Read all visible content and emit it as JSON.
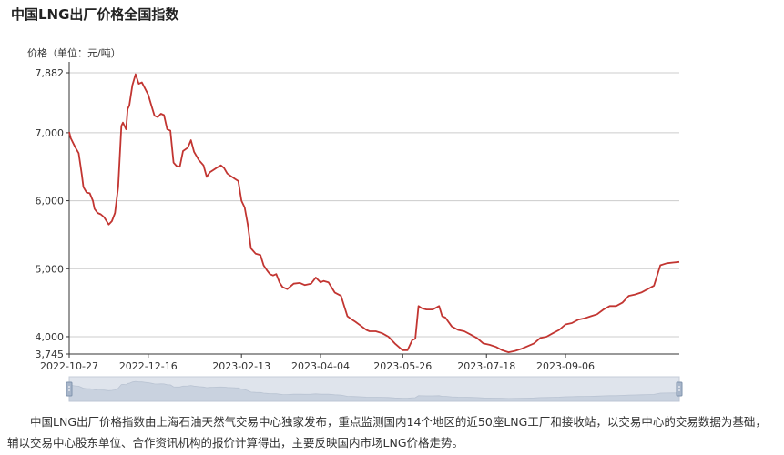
{
  "page": {
    "title": "中国LNG出厂价格全国指数",
    "description": "中国LNG出厂价格指数由上海石油天然气交易中心独家发布，重点监测国内14个地区的近50座LNG工厂和接收站，以交易中心的交易数据为基础，辅以交易中心股东单位、合作资讯机构的报价计算得出，主要反映国内市场LNG价格走势。"
  },
  "colors": {
    "line": "#c23531",
    "axis": "#333333",
    "grid": "#cccccc",
    "slider_bg": "#dfe4ec",
    "slider_fill": "#c9d2df"
  },
  "chart_data": {
    "type": "line",
    "ylabel": "价格（单位：元/吨）",
    "ylim": [
      3745,
      7882
    ],
    "y_ticks": [
      "7,882",
      "7,000",
      "6,000",
      "5,000",
      "4,000",
      "3,745"
    ],
    "y_tick_values": [
      7882,
      7000,
      6000,
      5000,
      4000,
      3745
    ],
    "x_range": [
      "2022-10-27",
      "2023-11-17"
    ],
    "x_ticks": [
      "2022-10-27",
      "2022-12-16",
      "2023-02-13",
      "2023-04-04",
      "2023-05-26",
      "2023-07-18",
      "2023-09-06"
    ],
    "series": [
      {
        "x": [
          "2022-10-27",
          "2022-10-28",
          "2022-10-31",
          "2022-11-02",
          "2022-11-04",
          "2022-11-05",
          "2022-11-07",
          "2022-11-09",
          "2022-11-11",
          "2022-11-12",
          "2022-11-14",
          "2022-11-16",
          "2022-11-18",
          "2022-11-21",
          "2022-11-23",
          "2022-11-25",
          "2022-11-27",
          "2022-11-29",
          "2022-11-30",
          "2022-12-02",
          "2022-12-03",
          "2022-12-04",
          "2022-12-06",
          "2022-12-08",
          "2022-12-10",
          "2022-12-12",
          "2022-12-14",
          "2022-12-16",
          "2022-12-18",
          "2022-12-20",
          "2022-12-22",
          "2022-12-24",
          "2022-12-26",
          "2022-12-28",
          "2022-12-30",
          "2023-01-01",
          "2023-01-03",
          "2023-01-05",
          "2023-01-07",
          "2023-01-10",
          "2023-01-12",
          "2023-01-14",
          "2023-01-17",
          "2023-01-20",
          "2023-01-22",
          "2023-01-24",
          "2023-01-26",
          "2023-01-28",
          "2023-01-31",
          "2023-02-02",
          "2023-02-04",
          "2023-02-07",
          "2023-02-09",
          "2023-02-11",
          "2023-02-13",
          "2023-02-15",
          "2023-02-17",
          "2023-02-19",
          "2023-02-22",
          "2023-02-25",
          "2023-02-27",
          "2023-03-01",
          "2023-03-03",
          "2023-03-05",
          "2023-03-07",
          "2023-03-09",
          "2023-03-11",
          "2023-03-14",
          "2023-03-18",
          "2023-03-22",
          "2023-03-25",
          "2023-03-29",
          "2023-04-01",
          "2023-04-04",
          "2023-04-06",
          "2023-04-09",
          "2023-04-13",
          "2023-04-17",
          "2023-04-21",
          "2023-04-24",
          "2023-04-26",
          "2023-04-29",
          "2023-05-03",
          "2023-05-05",
          "2023-05-09",
          "2023-05-13",
          "2023-05-17",
          "2023-05-21",
          "2023-05-26",
          "2023-05-29",
          "2023-06-01",
          "2023-06-03",
          "2023-06-05",
          "2023-06-07",
          "2023-06-10",
          "2023-06-14",
          "2023-06-18",
          "2023-06-20",
          "2023-06-22",
          "2023-06-26",
          "2023-06-30",
          "2023-07-04",
          "2023-07-08",
          "2023-07-12",
          "2023-07-16",
          "2023-07-20",
          "2023-07-24",
          "2023-07-28",
          "2023-08-01",
          "2023-08-05",
          "2023-08-09",
          "2023-08-13",
          "2023-08-17",
          "2023-08-21",
          "2023-08-25",
          "2023-08-29",
          "2023-09-02",
          "2023-09-06",
          "2023-09-10",
          "2023-09-14",
          "2023-09-18",
          "2023-09-22",
          "2023-09-26",
          "2023-09-30",
          "2023-10-04",
          "2023-10-08",
          "2023-10-12",
          "2023-10-16",
          "2023-10-20",
          "2023-10-24",
          "2023-10-28",
          "2023-11-01",
          "2023-11-05",
          "2023-11-09",
          "2023-11-13",
          "2023-11-17"
        ],
        "y": [
          7010,
          6920,
          6780,
          6700,
          6380,
          6200,
          6120,
          6110,
          6000,
          5880,
          5820,
          5800,
          5760,
          5650,
          5700,
          5820,
          6200,
          7100,
          7150,
          7050,
          7350,
          7400,
          7700,
          7860,
          7720,
          7740,
          7650,
          7560,
          7400,
          7250,
          7230,
          7280,
          7260,
          7050,
          7030,
          6560,
          6510,
          6500,
          6730,
          6780,
          6890,
          6720,
          6600,
          6520,
          6350,
          6420,
          6450,
          6480,
          6520,
          6480,
          6400,
          6350,
          6320,
          6290,
          6000,
          5900,
          5650,
          5300,
          5220,
          5200,
          5050,
          4980,
          4920,
          4900,
          4920,
          4800,
          4730,
          4700,
          4780,
          4790,
          4760,
          4780,
          4870,
          4800,
          4820,
          4800,
          4650,
          4600,
          4300,
          4250,
          4220,
          4170,
          4100,
          4080,
          4080,
          4050,
          4000,
          3900,
          3800,
          3800,
          3950,
          3970,
          4450,
          4420,
          4400,
          4400,
          4450,
          4300,
          4280,
          4150,
          4100,
          4080,
          4030,
          3980,
          3900,
          3880,
          3850,
          3800,
          3770,
          3790,
          3820,
          3860,
          3900,
          3980,
          4000,
          4050,
          4100,
          4180,
          4200,
          4250,
          4270,
          4300,
          4330,
          4400,
          4450,
          4450,
          4500,
          4600,
          4620,
          4650,
          4700,
          4750,
          5050,
          5080,
          5090,
          5100
        ]
      }
    ]
  }
}
